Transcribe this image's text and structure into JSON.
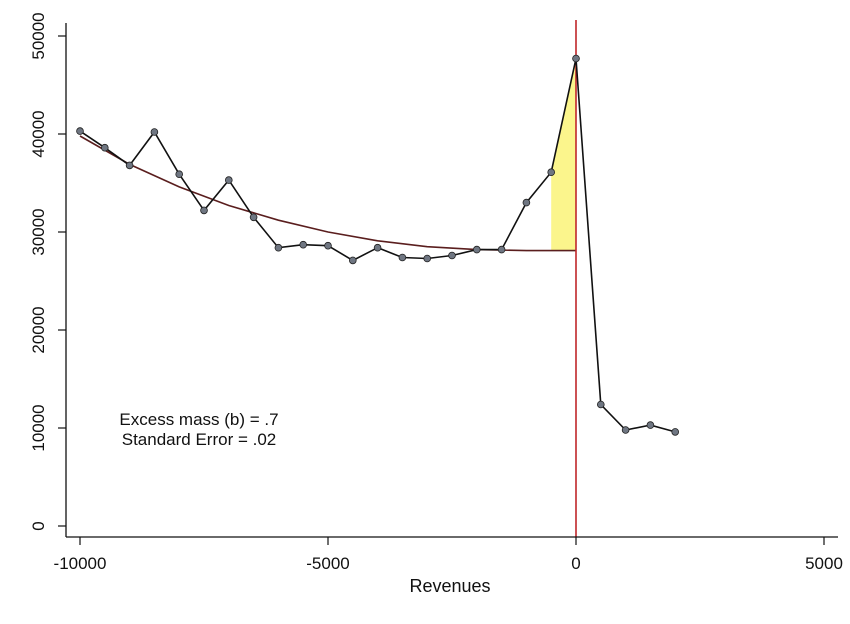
{
  "chart_data": {
    "type": "line",
    "xlabel": "Revenues",
    "ylabel": "",
    "xlim": [
      -10000,
      5000
    ],
    "ylim": [
      0,
      50000
    ],
    "x_ticks": [
      -10000,
      -5000,
      0,
      5000
    ],
    "y_ticks": [
      0,
      10000,
      20000,
      30000,
      40000,
      50000
    ],
    "threshold_x": 0,
    "series": [
      {
        "kind": "observed",
        "x": [
          -10000,
          -9500,
          -9000,
          -8500,
          -8000,
          -7500,
          -7000,
          -6500,
          -6000,
          -5500,
          -5000,
          -4500,
          -4000,
          -3500,
          -3000,
          -2500,
          -2000,
          -1500,
          -1000,
          -500,
          0,
          500,
          1000,
          1500,
          2000
        ],
        "y": [
          40300,
          38600,
          36800,
          40200,
          35900,
          32200,
          35300,
          31500,
          28400,
          28700,
          28600,
          27100,
          28400,
          27400,
          27300,
          27600,
          28200,
          28200,
          33000,
          36100,
          47700,
          12400,
          9800,
          10300,
          9600
        ]
      },
      {
        "kind": "counterfactual",
        "x": [
          -10000,
          -9000,
          -8000,
          -7000,
          -6000,
          -5000,
          -4000,
          -3000,
          -2000,
          -1000,
          0
        ],
        "y": [
          39800,
          36900,
          34600,
          32700,
          31200,
          30000,
          29100,
          28500,
          28200,
          28100,
          28100
        ]
      }
    ],
    "excess_mass_region": {
      "x_start": -500,
      "x_end": 0
    },
    "annotations": [
      "Excess mass (b) = .7",
      "Standard Error = .02"
    ],
    "colors": {
      "observed_line": "#111111",
      "marker_fill": "#6f7682",
      "counterfactual_line": "#5a1e1e",
      "threshold_line": "#c0262a",
      "shaded_region": "#fbf58c"
    },
    "grid": false
  }
}
